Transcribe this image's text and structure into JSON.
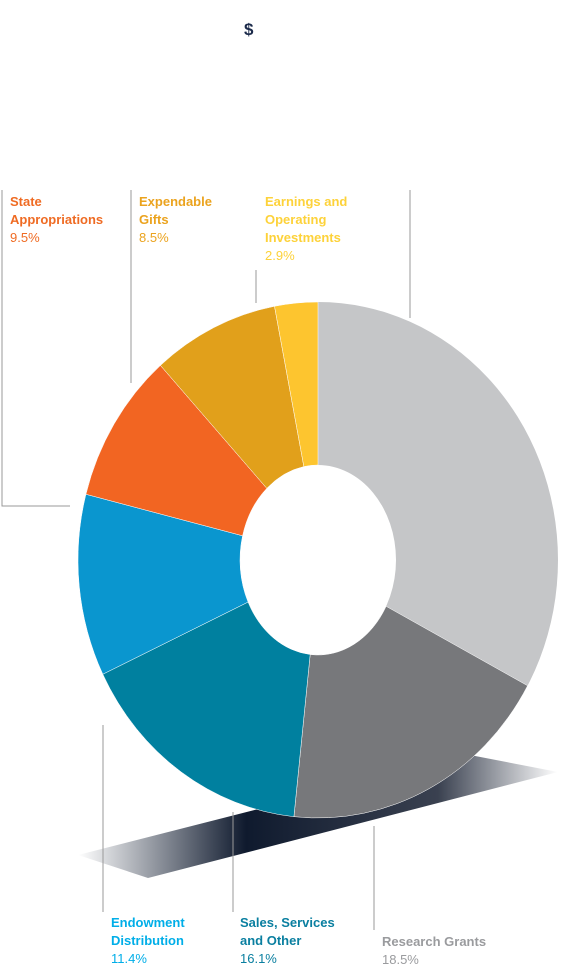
{
  "chart_data": {
    "type": "pie",
    "title": "$",
    "categories": [
      "Research Grants",
      "Sales, Services and Other",
      "Endowment Distribution",
      "State Appropriations",
      "Expendable Gifts",
      "Earnings and Operating Investments"
    ],
    "values": [
      18.5,
      16.1,
      11.4,
      9.5,
      8.5,
      2.9
    ],
    "value_labels": [
      "18.5%",
      "16.1%",
      "11.4%",
      "9.5%",
      "8.5%",
      "2.9%"
    ],
    "colors": [
      "#77787b",
      "#00809f",
      "#0a96cf",
      "#f26522",
      "#e1a01b",
      "#fdc52f"
    ]
  }
}
